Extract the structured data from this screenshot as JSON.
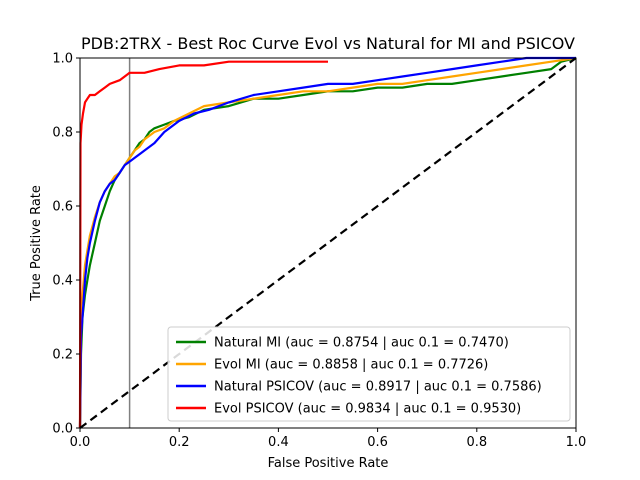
{
  "chart_data": {
    "type": "line",
    "title": "PDB:2TRX - Best Roc Curve Evol vs Natural for MI and PSICOV",
    "xlabel": "False Positive Rate",
    "ylabel": "True Positive Rate",
    "xlim": [
      0,
      1
    ],
    "ylim": [
      0,
      1
    ],
    "xticks": [
      "0.0",
      "0.2",
      "0.4",
      "0.6",
      "0.8",
      "1.0"
    ],
    "yticks": [
      "0.0",
      "0.2",
      "0.4",
      "0.6",
      "0.8",
      "1.0"
    ],
    "grid": false,
    "legend_position": "lower-right",
    "reference_line": {
      "x": 0.1,
      "color": "#808080"
    },
    "diagonal": {
      "from": [
        0,
        0
      ],
      "to": [
        1,
        1
      ],
      "color": "#000000",
      "style": "dashed"
    },
    "series": [
      {
        "name": "Natural MI (auc = 0.8754 | auc 0.1 = 0.7470)",
        "color": "#008000",
        "x": [
          0,
          0.002,
          0.005,
          0.01,
          0.015,
          0.02,
          0.03,
          0.04,
          0.05,
          0.06,
          0.07,
          0.08,
          0.09,
          0.1,
          0.11,
          0.12,
          0.13,
          0.14,
          0.15,
          0.17,
          0.19,
          0.22,
          0.25,
          0.3,
          0.35,
          0.4,
          0.45,
          0.5,
          0.55,
          0.6,
          0.65,
          0.7,
          0.75,
          0.8,
          0.85,
          0.9,
          0.95,
          0.97,
          1.0
        ],
        "y": [
          0,
          0.2,
          0.3,
          0.36,
          0.4,
          0.44,
          0.5,
          0.56,
          0.6,
          0.64,
          0.67,
          0.69,
          0.71,
          0.73,
          0.75,
          0.77,
          0.78,
          0.8,
          0.81,
          0.82,
          0.83,
          0.84,
          0.86,
          0.87,
          0.89,
          0.89,
          0.9,
          0.91,
          0.91,
          0.92,
          0.92,
          0.93,
          0.93,
          0.94,
          0.95,
          0.96,
          0.97,
          0.99,
          1.0
        ]
      },
      {
        "name": "Evol MI (auc = 0.8858 | auc 0.1 = 0.7726)",
        "color": "#ffa500",
        "x": [
          0,
          0.002,
          0.005,
          0.01,
          0.015,
          0.02,
          0.03,
          0.04,
          0.05,
          0.06,
          0.07,
          0.08,
          0.09,
          0.1,
          0.11,
          0.12,
          0.13,
          0.15,
          0.17,
          0.19,
          0.22,
          0.25,
          0.3,
          0.35,
          0.4,
          0.45,
          0.5,
          0.55,
          0.6,
          0.65,
          0.7,
          0.75,
          0.8,
          0.85,
          0.9,
          0.95,
          1.0
        ],
        "y": [
          0,
          0.33,
          0.36,
          0.44,
          0.48,
          0.52,
          0.57,
          0.61,
          0.64,
          0.66,
          0.68,
          0.69,
          0.71,
          0.73,
          0.75,
          0.76,
          0.78,
          0.8,
          0.81,
          0.83,
          0.85,
          0.87,
          0.88,
          0.89,
          0.9,
          0.91,
          0.91,
          0.92,
          0.93,
          0.93,
          0.94,
          0.95,
          0.96,
          0.97,
          0.98,
          0.99,
          1.0
        ]
      },
      {
        "name": "Natural PSICOV (auc = 0.8917 | auc 0.1 = 0.7586)",
        "color": "#0000ff",
        "x": [
          0,
          0.002,
          0.005,
          0.01,
          0.015,
          0.02,
          0.03,
          0.04,
          0.05,
          0.06,
          0.07,
          0.08,
          0.09,
          0.1,
          0.11,
          0.12,
          0.13,
          0.15,
          0.17,
          0.2,
          0.23,
          0.26,
          0.3,
          0.35,
          0.4,
          0.45,
          0.5,
          0.55,
          0.6,
          0.65,
          0.7,
          0.75,
          0.8,
          0.85,
          0.9,
          0.95,
          1.0
        ],
        "y": [
          0,
          0.25,
          0.3,
          0.4,
          0.46,
          0.5,
          0.56,
          0.61,
          0.64,
          0.66,
          0.67,
          0.69,
          0.71,
          0.72,
          0.73,
          0.74,
          0.75,
          0.77,
          0.8,
          0.83,
          0.85,
          0.86,
          0.88,
          0.9,
          0.91,
          0.92,
          0.93,
          0.93,
          0.94,
          0.95,
          0.96,
          0.97,
          0.98,
          0.99,
          1.0,
          1.0,
          1.0
        ]
      },
      {
        "name": "Evol PSICOV (auc = 0.9834 | auc 0.1 = 0.9530)",
        "color": "#ff0000",
        "x": [
          0,
          0.001,
          0.003,
          0.006,
          0.01,
          0.015,
          0.02,
          0.03,
          0.04,
          0.05,
          0.06,
          0.08,
          0.1,
          0.13,
          0.16,
          0.2,
          0.25,
          0.3,
          0.35,
          0.4,
          0.45,
          0.5
        ],
        "y": [
          0,
          0.77,
          0.82,
          0.85,
          0.88,
          0.89,
          0.9,
          0.9,
          0.91,
          0.92,
          0.93,
          0.94,
          0.96,
          0.96,
          0.97,
          0.98,
          0.98,
          0.99,
          0.99,
          0.99,
          0.99,
          0.99
        ]
      }
    ]
  }
}
